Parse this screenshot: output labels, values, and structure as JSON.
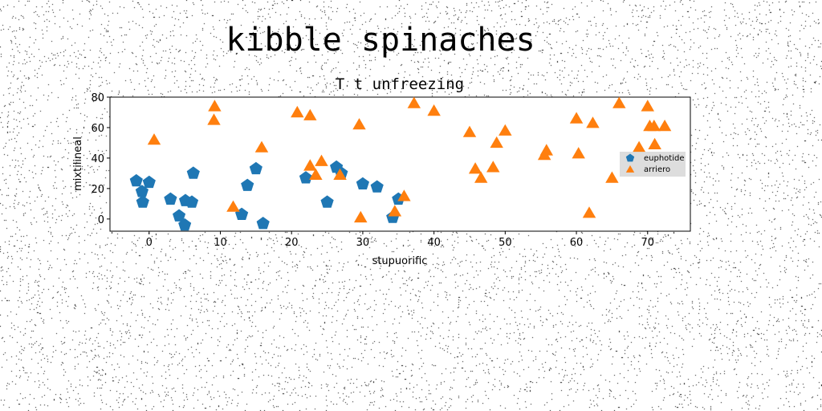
{
  "figure_title": "kibble spinaches",
  "colors": {
    "euphotide": "#1f77b4",
    "arriero": "#ff7f0e",
    "background": "#ffffff",
    "legend_bg": "#d9d9d9"
  },
  "chart_data": {
    "type": "scatter",
    "title": "T t unfreezing",
    "xlabel": "stupuorific",
    "ylabel": "mixtilineal",
    "xlim": [
      -5.5,
      76
    ],
    "ylim": [
      -8,
      80
    ],
    "xticks": [
      0,
      10,
      20,
      30,
      40,
      50,
      60,
      70
    ],
    "yticks": [
      0,
      20,
      40,
      60,
      80
    ],
    "grid": false,
    "legend_position": "center-right",
    "series": [
      {
        "name": "euphotide",
        "marker": "pentagon",
        "color": "#1f77b4",
        "points": [
          [
            -1.8,
            25
          ],
          [
            -1.0,
            18
          ],
          [
            -0.9,
            11
          ],
          [
            0.0,
            24
          ],
          [
            3.0,
            13
          ],
          [
            4.2,
            2
          ],
          [
            5.1,
            12
          ],
          [
            5.0,
            -4
          ],
          [
            6.0,
            11
          ],
          [
            6.2,
            30
          ],
          [
            13.0,
            3
          ],
          [
            13.8,
            22
          ],
          [
            15.0,
            33
          ],
          [
            16.0,
            -3
          ],
          [
            22.0,
            27
          ],
          [
            25.0,
            11
          ],
          [
            26.3,
            34
          ],
          [
            27.0,
            30
          ],
          [
            30.0,
            23
          ],
          [
            32.0,
            21
          ],
          [
            34.2,
            1
          ],
          [
            35.0,
            13
          ]
        ]
      },
      {
        "name": "arriero",
        "marker": "triangle",
        "color": "#ff7f0e",
        "points": [
          [
            0.7,
            52
          ],
          [
            9.2,
            74
          ],
          [
            9.1,
            65
          ],
          [
            11.8,
            8
          ],
          [
            15.8,
            47
          ],
          [
            20.8,
            70
          ],
          [
            22.6,
            68
          ],
          [
            22.6,
            35
          ],
          [
            23.4,
            29
          ],
          [
            24.2,
            38
          ],
          [
            26.8,
            29
          ],
          [
            29.5,
            62
          ],
          [
            29.7,
            1
          ],
          [
            34.5,
            5
          ],
          [
            35.8,
            15
          ],
          [
            37.2,
            76
          ],
          [
            40.0,
            71
          ],
          [
            45.0,
            57
          ],
          [
            45.8,
            33
          ],
          [
            46.6,
            27
          ],
          [
            48.3,
            34
          ],
          [
            48.8,
            50
          ],
          [
            50.0,
            58
          ],
          [
            55.5,
            42
          ],
          [
            55.8,
            45
          ],
          [
            60.0,
            66
          ],
          [
            60.3,
            43
          ],
          [
            61.8,
            4
          ],
          [
            62.3,
            63
          ],
          [
            65.0,
            27
          ],
          [
            66.0,
            76
          ],
          [
            68.8,
            47
          ],
          [
            70.0,
            74
          ],
          [
            70.3,
            61
          ],
          [
            70.9,
            61
          ],
          [
            71.0,
            49
          ],
          [
            72.4,
            61
          ]
        ]
      }
    ]
  }
}
